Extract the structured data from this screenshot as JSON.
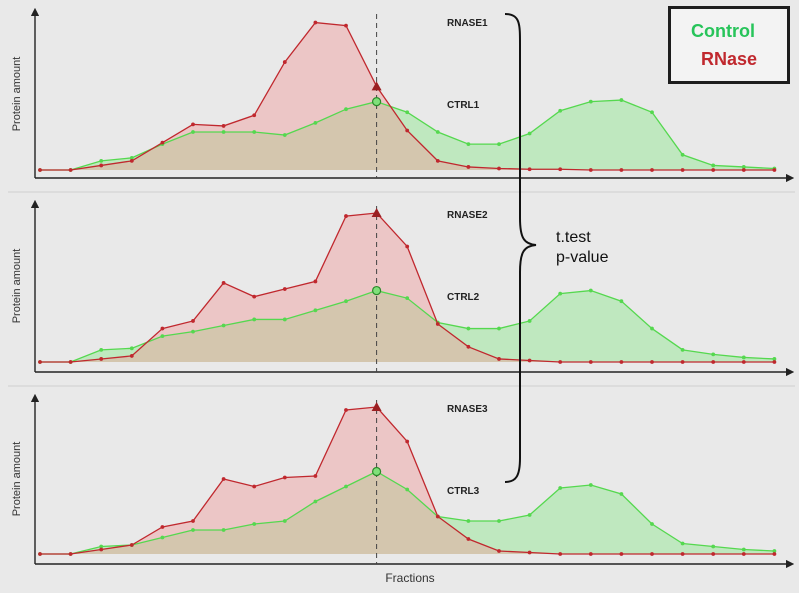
{
  "legend": {
    "control_label": "Control",
    "rnase_label": "RNase",
    "control_color": "#27c45a",
    "rnase_color": "#c0282e"
  },
  "annotation": {
    "line1": "t.test",
    "line2": "p-value"
  },
  "xlabel": "Fractions",
  "chart_data": [
    {
      "type": "area",
      "ylabel": "Protein amount",
      "x": [
        1,
        2,
        3,
        4,
        5,
        6,
        7,
        8,
        9,
        10,
        11,
        12,
        13,
        14,
        15,
        16,
        17,
        18,
        19,
        20,
        21,
        22,
        23,
        24,
        25
      ],
      "peak_fraction": 12,
      "series": [
        {
          "name": "RNASE1",
          "color": "#c0282e",
          "values": [
            0,
            0,
            3,
            6,
            18,
            30,
            29,
            36,
            71,
            97,
            95,
            55,
            26,
            6,
            2,
            1,
            0.5,
            0.5,
            0,
            0,
            0,
            0,
            0,
            0,
            0
          ]
        },
        {
          "name": "CTRL1",
          "color": "#27c45a",
          "values": [
            0,
            0,
            6,
            8,
            17,
            25,
            25,
            25,
            23,
            31,
            40,
            45,
            38,
            25,
            17,
            17,
            24,
            39,
            45,
            46,
            38,
            10,
            3,
            2,
            1
          ]
        }
      ]
    },
    {
      "type": "area",
      "ylabel": "Protein amount",
      "x": [
        1,
        2,
        3,
        4,
        5,
        6,
        7,
        8,
        9,
        10,
        11,
        12,
        13,
        14,
        15,
        16,
        17,
        18,
        19,
        20,
        21,
        22,
        23,
        24,
        25
      ],
      "peak_fraction": 12,
      "series": [
        {
          "name": "RNASE2",
          "color": "#c0282e",
          "values": [
            0,
            0,
            2,
            4,
            22,
            27,
            52,
            43,
            48,
            53,
            96,
            98,
            76,
            25,
            10,
            2,
            1,
            0,
            0,
            0,
            0,
            0,
            0,
            0,
            0
          ]
        },
        {
          "name": "CTRL2",
          "color": "#27c45a",
          "values": [
            0,
            0,
            8,
            9,
            17,
            20,
            24,
            28,
            28,
            34,
            40,
            47,
            42,
            26,
            22,
            22,
            27,
            45,
            47,
            40,
            22,
            8,
            5,
            3,
            2
          ]
        }
      ]
    },
    {
      "type": "area",
      "ylabel": "Protein amount",
      "x": [
        1,
        2,
        3,
        4,
        5,
        6,
        7,
        8,
        9,
        10,
        11,
        12,
        13,
        14,
        15,
        16,
        17,
        18,
        19,
        20,
        21,
        22,
        23,
        24,
        25
      ],
      "peak_fraction": 12,
      "series": [
        {
          "name": "RNASE3",
          "color": "#c0282e",
          "values": [
            0,
            0,
            3,
            6,
            18,
            22,
            50,
            45,
            51,
            52,
            96,
            98,
            75,
            25,
            10,
            2,
            1,
            0,
            0,
            0,
            0,
            0,
            0,
            0,
            0
          ]
        },
        {
          "name": "CTRL3",
          "color": "#27c45a",
          "values": [
            0,
            0,
            5,
            6,
            11,
            16,
            16,
            20,
            22,
            35,
            45,
            55,
            43,
            25,
            22,
            22,
            26,
            44,
            46,
            40,
            20,
            7,
            5,
            3,
            2
          ]
        }
      ]
    }
  ]
}
